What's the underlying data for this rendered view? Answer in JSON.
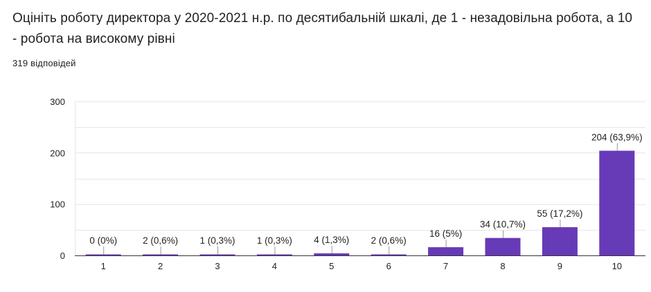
{
  "question": {
    "title": "Оцініть роботу директора у 2020-2021 н.р. по десятибальній шкалі, де 1 - незадовільна робота, а 10 - робота на високому рівні",
    "response_count": "319 відповідей"
  },
  "colors": {
    "bar": "#673ab7",
    "grid": "#e6e6e6",
    "axis": "#333333",
    "text": "#222222",
    "leader": "#999999"
  },
  "chart_data": {
    "type": "bar",
    "title": "Оцініть роботу директора у 2020-2021 н.р. по десятибальній шкалі, де 1 - незадовільна робота, а 10 - робота на високому рівні",
    "xlabel": "",
    "ylabel": "",
    "categories": [
      "1",
      "2",
      "3",
      "4",
      "5",
      "6",
      "7",
      "8",
      "9",
      "10"
    ],
    "values": [
      0,
      2,
      1,
      1,
      4,
      2,
      16,
      34,
      55,
      204
    ],
    "data_labels": [
      "0 (0%)",
      "2 (0,6%)",
      "1 (0,3%)",
      "1 (0,3%)",
      "4 (1,3%)",
      "2 (0,6%)",
      "16 (5%)",
      "34 (10,7%)",
      "55 (17,2%)",
      "204 (63,9%)"
    ],
    "ylim": [
      0,
      300
    ],
    "yticks": [
      0,
      100,
      200,
      300
    ],
    "grid": true,
    "legend": "none"
  }
}
